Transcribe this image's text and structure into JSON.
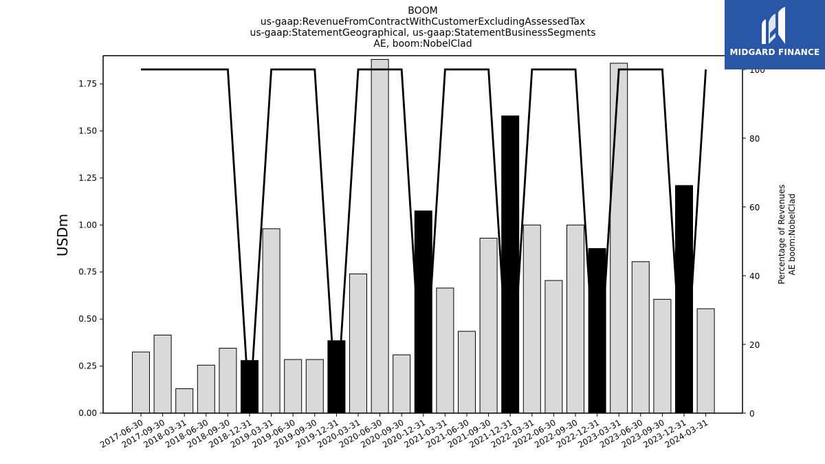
{
  "chart_data": {
    "type": "bar",
    "title": [
      "BOOM",
      "us-gaap:RevenueFromContractWithCustomerExcludingAssessedTax",
      "us-gaap:StatementGeographical, us-gaap:StatementBusinessSegments",
      "AE, boom:NobelClad"
    ],
    "ylabel": "USDm",
    "y2label": [
      "Percentage of Revenues",
      "AE boom:NobelClad"
    ],
    "ylim": [
      0,
      1.9
    ],
    "y2lim": [
      0,
      104
    ],
    "yticks": [
      "0.00",
      "0.25",
      "0.50",
      "0.75",
      "1.00",
      "1.25",
      "1.50",
      "1.75"
    ],
    "y2ticks": [
      "0",
      "20",
      "40",
      "60",
      "80",
      "100"
    ],
    "categories": [
      "2017-06-30",
      "2017-09-30",
      "2018-03-31",
      "2018-06-30",
      "2018-09-30",
      "2018-12-31",
      "2019-03-31",
      "2019-06-30",
      "2019-09-30",
      "2019-12-31",
      "2020-03-31",
      "2020-06-30",
      "2020-09-30",
      "2020-12-31",
      "2021-03-31",
      "2021-06-30",
      "2021-09-30",
      "2021-12-31",
      "2022-03-31",
      "2022-06-30",
      "2022-09-30",
      "2022-12-31",
      "2023-03-31",
      "2023-06-30",
      "2023-09-30",
      "2023-12-31",
      "2024-03-31"
    ],
    "series": [
      {
        "values": [
          0.325,
          0.415,
          0.13,
          0.255,
          0.345,
          0.28,
          0.98,
          0.285,
          0.285,
          0.385,
          0.74,
          1.88,
          0.31,
          1.075,
          0.665,
          0.435,
          0.93,
          1.58,
          1.0,
          0.705,
          1.0,
          0.875,
          1.86,
          0.805,
          0.605,
          1.21,
          0.555
        ],
        "highlight": [
          false,
          false,
          false,
          false,
          false,
          true,
          false,
          false,
          false,
          true,
          false,
          false,
          false,
          true,
          false,
          false,
          false,
          true,
          false,
          false,
          false,
          true,
          false,
          false,
          false,
          true,
          false
        ],
        "axis": "left"
      },
      {
        "type": "line",
        "axis": "right",
        "values": [
          100,
          100,
          100,
          100,
          100,
          0,
          100,
          100,
          100,
          0,
          100,
          100,
          100,
          0,
          100,
          100,
          100,
          0,
          100,
          100,
          100,
          0,
          100,
          100,
          100,
          0,
          100
        ]
      }
    ],
    "colors": {
      "bar": "#d9d9d9",
      "bar_highlight": "#000000",
      "line": "#000000"
    },
    "grid": false
  },
  "logo": {
    "text": "MIDGARD FINANCE",
    "color": "#2a56a8"
  }
}
